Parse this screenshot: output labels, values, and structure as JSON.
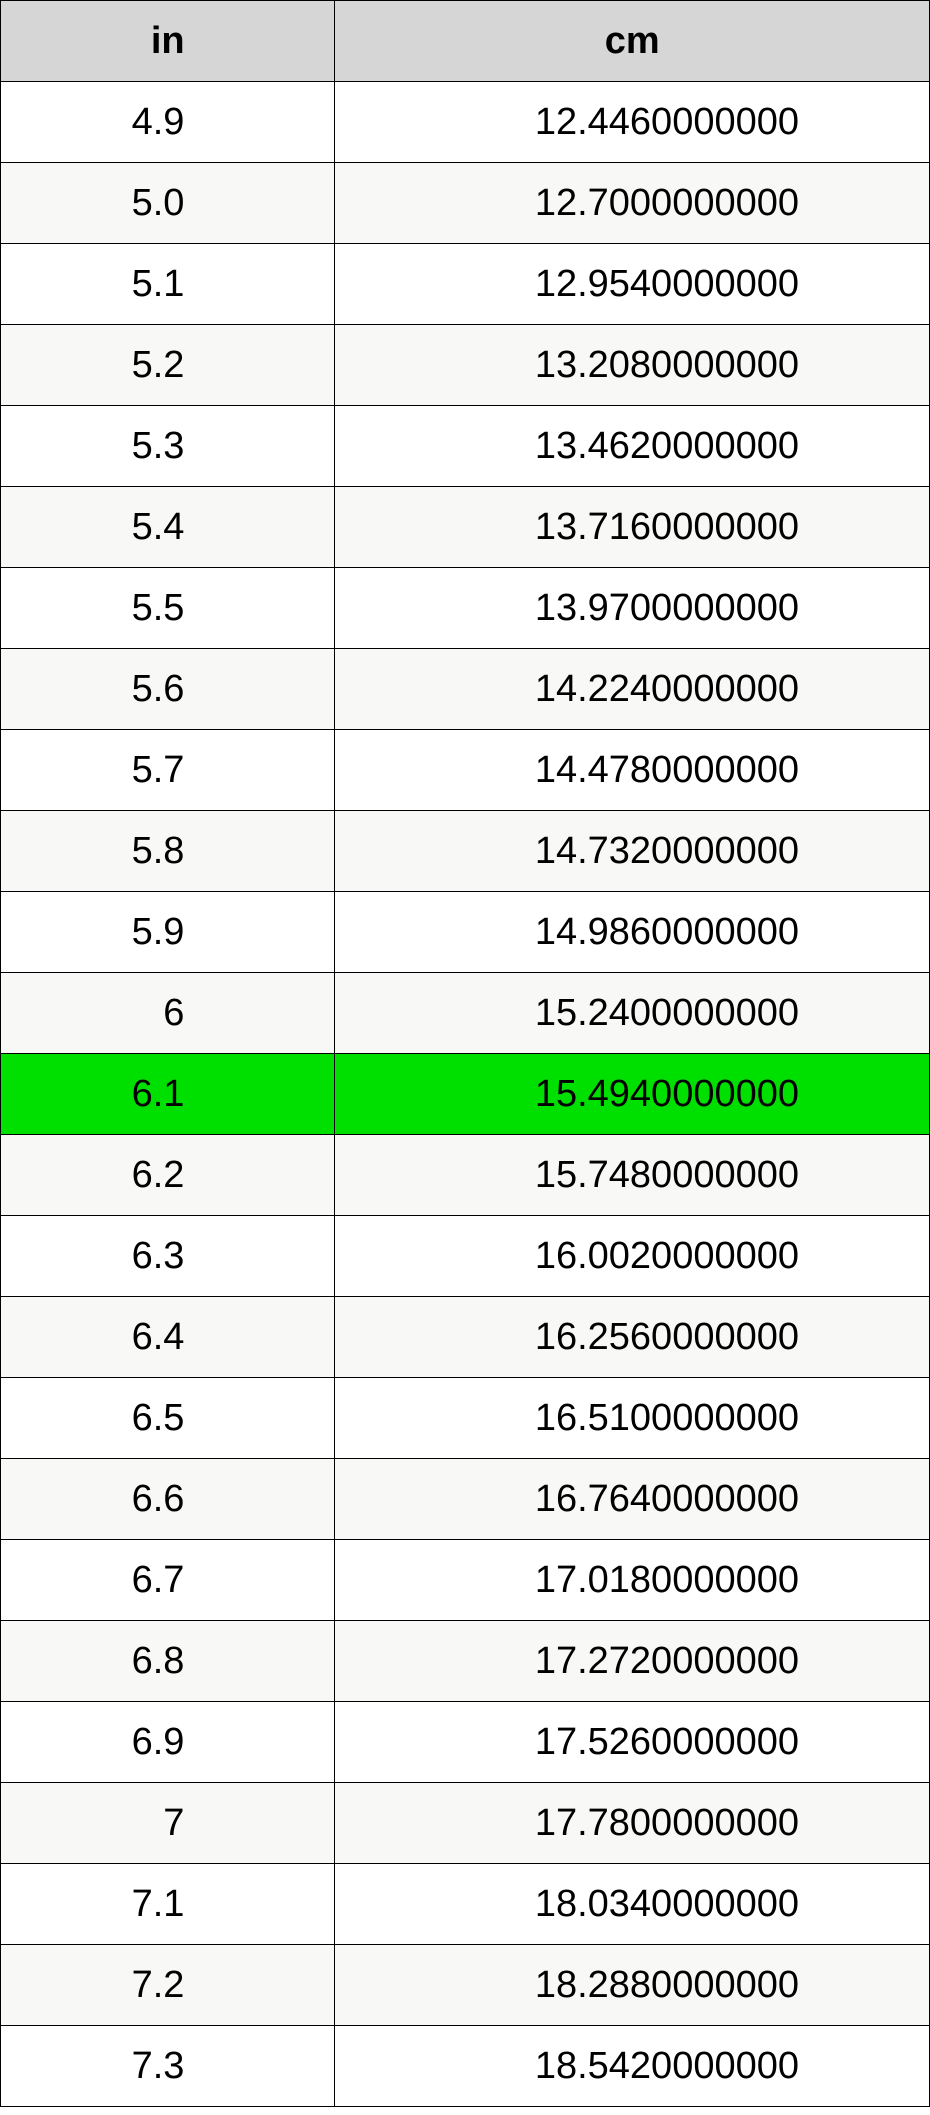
{
  "table": {
    "type": "table",
    "header_background": "#d6d6d6",
    "row_background_even": "#ffffff",
    "row_background_odd": "#f8f8f6",
    "highlight_background": "#00e000",
    "border_color": "#000000",
    "text_color": "#000000",
    "font_size": 38,
    "columns": [
      {
        "key": "in",
        "label": "in",
        "width_pct": 36
      },
      {
        "key": "cm",
        "label": "cm",
        "width_pct": 64
      }
    ],
    "highlight_index": 12,
    "rows": [
      {
        "in": "4.9",
        "cm": "12.4460000000"
      },
      {
        "in": "5.0",
        "cm": "12.7000000000"
      },
      {
        "in": "5.1",
        "cm": "12.9540000000"
      },
      {
        "in": "5.2",
        "cm": "13.2080000000"
      },
      {
        "in": "5.3",
        "cm": "13.4620000000"
      },
      {
        "in": "5.4",
        "cm": "13.7160000000"
      },
      {
        "in": "5.5",
        "cm": "13.9700000000"
      },
      {
        "in": "5.6",
        "cm": "14.2240000000"
      },
      {
        "in": "5.7",
        "cm": "14.4780000000"
      },
      {
        "in": "5.8",
        "cm": "14.7320000000"
      },
      {
        "in": "5.9",
        "cm": "14.9860000000"
      },
      {
        "in": "6",
        "cm": "15.2400000000"
      },
      {
        "in": "6.1",
        "cm": "15.4940000000"
      },
      {
        "in": "6.2",
        "cm": "15.7480000000"
      },
      {
        "in": "6.3",
        "cm": "16.0020000000"
      },
      {
        "in": "6.4",
        "cm": "16.2560000000"
      },
      {
        "in": "6.5",
        "cm": "16.5100000000"
      },
      {
        "in": "6.6",
        "cm": "16.7640000000"
      },
      {
        "in": "6.7",
        "cm": "17.0180000000"
      },
      {
        "in": "6.8",
        "cm": "17.2720000000"
      },
      {
        "in": "6.9",
        "cm": "17.5260000000"
      },
      {
        "in": "7",
        "cm": "17.7800000000"
      },
      {
        "in": "7.1",
        "cm": "18.0340000000"
      },
      {
        "in": "7.2",
        "cm": "18.2880000000"
      },
      {
        "in": "7.3",
        "cm": "18.5420000000"
      }
    ]
  }
}
